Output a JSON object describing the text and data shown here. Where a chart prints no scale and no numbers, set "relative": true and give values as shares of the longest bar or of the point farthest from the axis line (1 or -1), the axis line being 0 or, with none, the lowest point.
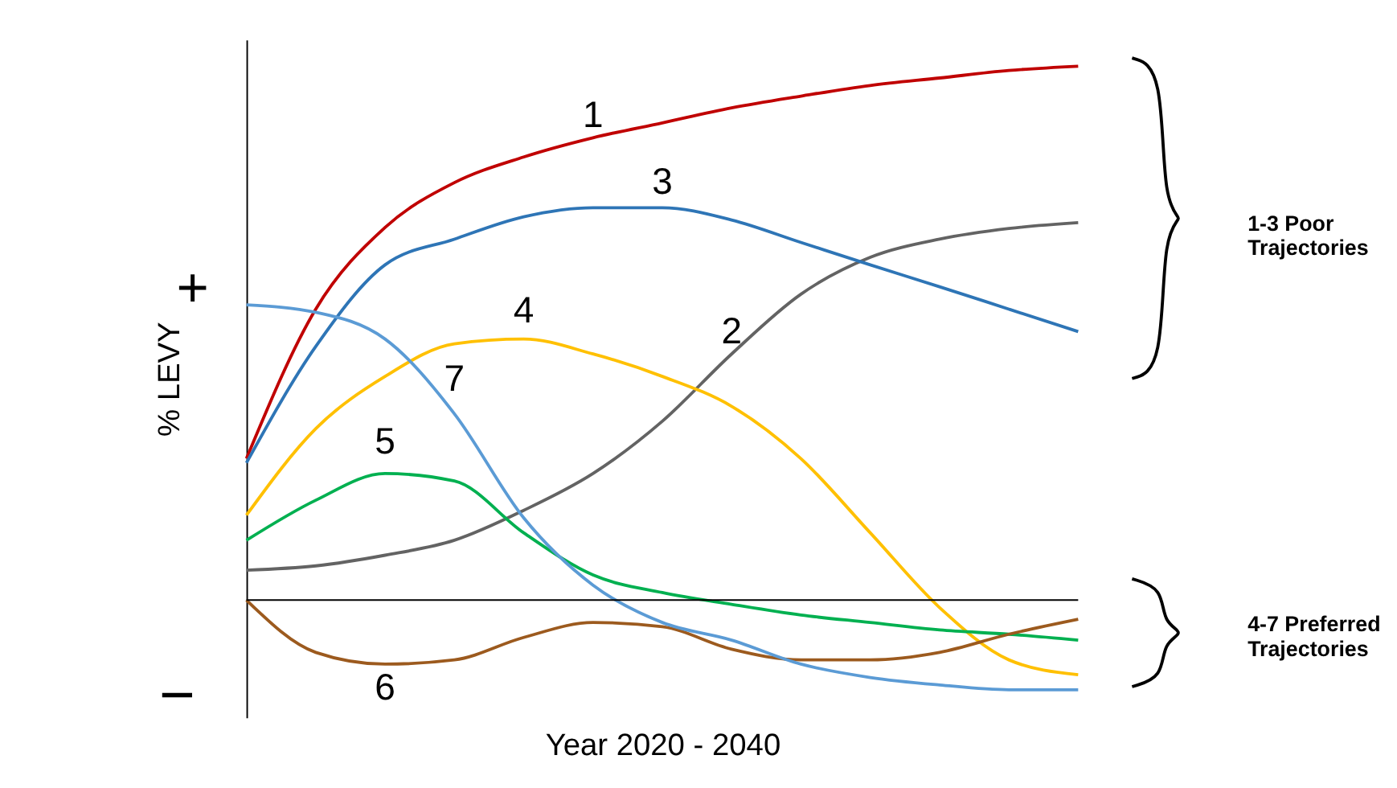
{
  "chart_data": {
    "type": "line",
    "relative": true,
    "xlabel": "Year 2020 - 2040",
    "ylabel": "% LEVY",
    "categories": [
      null,
      null,
      null,
      null,
      null,
      null,
      null,
      null,
      null,
      null,
      null,
      null,
      null
    ],
    "series": [
      {
        "name": "1",
        "color": "#c00000",
        "values": [
          0.265,
          0.545,
          0.698,
          0.782,
          0.83,
          0.866,
          0.894,
          0.922,
          0.944,
          0.964,
          0.978,
          0.992,
          1
        ]
      },
      {
        "name": "2",
        "color": "#636363",
        "values": [
          0.056,
          0.064,
          0.084,
          0.112,
          0.168,
          0.237,
          0.335,
          0.461,
          0.573,
          0.642,
          0.676,
          0.696,
          0.707
        ]
      },
      {
        "name": "3",
        "color": "#2e75b6",
        "values": [
          0.257,
          0.475,
          0.628,
          0.676,
          0.718,
          0.735,
          0.735,
          0.712,
          0.67,
          0.628,
          0.587,
          0.545,
          0.503
        ]
      },
      {
        "name": "4",
        "color": "#ffc000",
        "values": [
          0.159,
          0.321,
          0.419,
          0.48,
          0.489,
          0.461,
          0.419,
          0.363,
          0.265,
          0.126,
          -0.014,
          -0.112,
          -0.14
        ]
      },
      {
        "name": "5",
        "color": "#00b050",
        "values": [
          0.112,
          0.187,
          0.237,
          0.223,
          0.126,
          0.047,
          0.014,
          -0.008,
          -0.028,
          -0.042,
          -0.056,
          -0.064,
          -0.075
        ]
      },
      {
        "name": "6",
        "color": "#9c5a1e",
        "values": [
          0,
          -0.098,
          -0.12,
          -0.112,
          -0.07,
          -0.042,
          -0.05,
          -0.092,
          -0.112,
          -0.112,
          -0.098,
          -0.064,
          -0.036
        ]
      },
      {
        "name": "7",
        "color": "#5b9bd5",
        "values": [
          0.553,
          0.539,
          0.489,
          0.349,
          0.154,
          0.028,
          -0.042,
          -0.075,
          -0.12,
          -0.145,
          -0.159,
          -0.168,
          -0.168
        ]
      }
    ],
    "annotations": [
      "+",
      "−",
      "1-3 Poor\nTrajectories",
      "4-7 Preferred\nTrajectories"
    ],
    "legend": false,
    "grid": false,
    "marker": "none",
    "line_style": "solid"
  }
}
